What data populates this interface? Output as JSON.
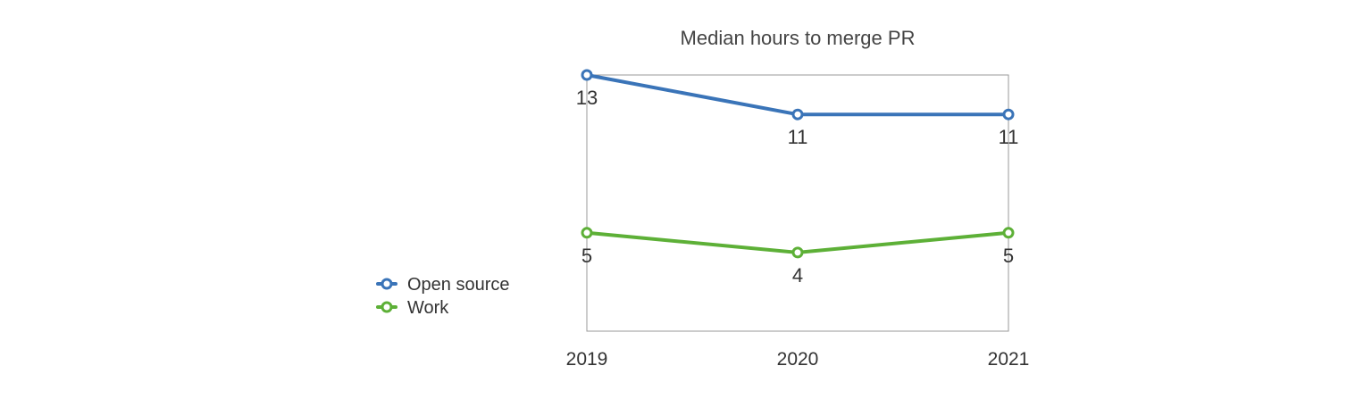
{
  "chart_data": {
    "type": "line",
    "title": "Median hours to merge PR",
    "categories": [
      "2019",
      "2020",
      "2021"
    ],
    "series": [
      {
        "name": "Open source",
        "values": [
          13,
          11,
          11
        ],
        "color": "#3a74b8"
      },
      {
        "name": "Work",
        "values": [
          5,
          4,
          5
        ],
        "color": "#5db037"
      }
    ],
    "ylim": [
      0,
      13
    ],
    "grid": false,
    "legend": "left",
    "data_labels": true
  }
}
